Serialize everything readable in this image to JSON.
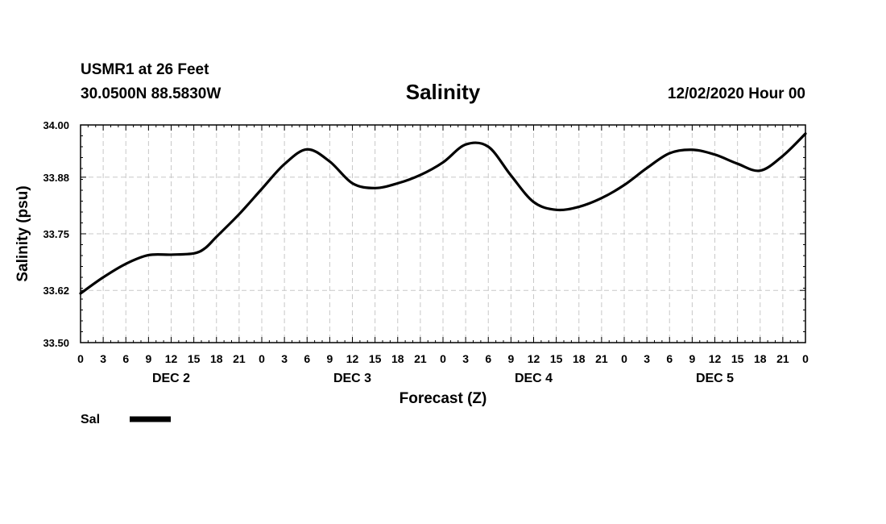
{
  "header": {
    "station": "USMR1 at 26 Feet",
    "coords": "30.0500N 88.5830W",
    "run_time": "12/02/2020 Hour 00"
  },
  "chart_data": {
    "type": "line",
    "title": "Salinity",
    "xlabel": "Forecast (Z)",
    "ylabel": "Salinity (psu)",
    "ylim": [
      33.5,
      34.0
    ],
    "xlim_hours": [
      0,
      96
    ],
    "y_ticks": [
      "34.00",
      "33.88",
      "33.75",
      "33.62",
      "33.50"
    ],
    "x_tick_labels": [
      "0",
      "3",
      "6",
      "9",
      "12",
      "15",
      "18",
      "21",
      "0",
      "3",
      "6",
      "9",
      "12",
      "15",
      "18",
      "21",
      "0",
      "3",
      "6",
      "9",
      "12",
      "15",
      "18",
      "21",
      "0",
      "3",
      "6",
      "9",
      "12",
      "15",
      "18",
      "21",
      "0"
    ],
    "day_labels": [
      "DEC 2",
      "DEC 3",
      "DEC 4",
      "DEC 5"
    ],
    "grid": true,
    "legend": {
      "placement": "bottom-left",
      "entries": [
        {
          "label": "Sal",
          "color": "#000000"
        }
      ]
    },
    "series": [
      {
        "name": "Sal",
        "color": "#000000",
        "x": [
          0,
          3,
          6,
          9,
          12,
          15,
          16.5,
          18,
          21,
          24,
          27,
          30,
          33,
          36,
          39,
          42,
          45,
          48,
          51,
          54,
          57,
          60,
          63,
          66,
          69,
          72,
          75,
          78,
          81,
          84,
          87,
          90,
          93,
          96
        ],
        "values": [
          33.613,
          33.65,
          33.681,
          33.701,
          33.702,
          33.705,
          33.717,
          33.743,
          33.795,
          33.853,
          33.91,
          33.944,
          33.916,
          33.866,
          33.855,
          33.866,
          33.885,
          33.914,
          33.955,
          33.95,
          33.884,
          33.823,
          33.805,
          33.812,
          33.832,
          33.862,
          33.901,
          33.935,
          33.943,
          33.932,
          33.911,
          33.895,
          33.929,
          33.98
        ]
      }
    ]
  }
}
